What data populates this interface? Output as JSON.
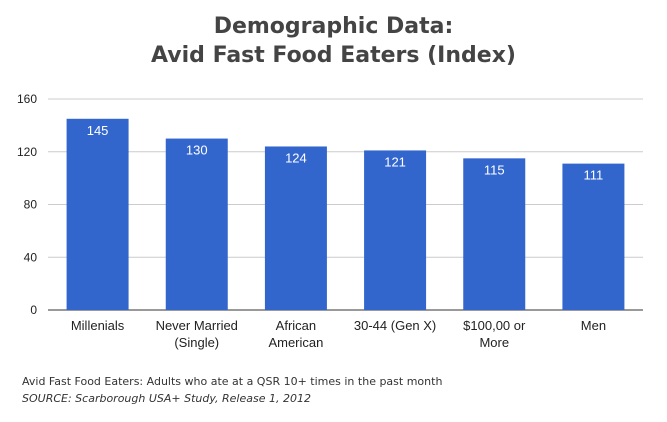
{
  "chart_data": {
    "type": "bar",
    "title_lines": [
      "Demographic Data:",
      "Avid Fast Food Eaters (Index)"
    ],
    "categories": [
      [
        "Millenials"
      ],
      [
        "Never Married",
        "(Single)"
      ],
      [
        "African",
        "American"
      ],
      [
        "30-44 (Gen X)"
      ],
      [
        "$100,00 or",
        "More"
      ],
      [
        "Men"
      ]
    ],
    "values": [
      145,
      130,
      124,
      121,
      115,
      111
    ],
    "ylim": [
      0,
      160
    ],
    "yticks": [
      0,
      40,
      80,
      120,
      160
    ],
    "grid": true,
    "bar_color": "#3366cc",
    "data_labels": true
  },
  "footnote": "Avid Fast Food Eaters: Adults who ate at a QSR 10+ times in the past month",
  "source": "SOURCE: Scarborough USA+ Study, Release 1, 2012"
}
